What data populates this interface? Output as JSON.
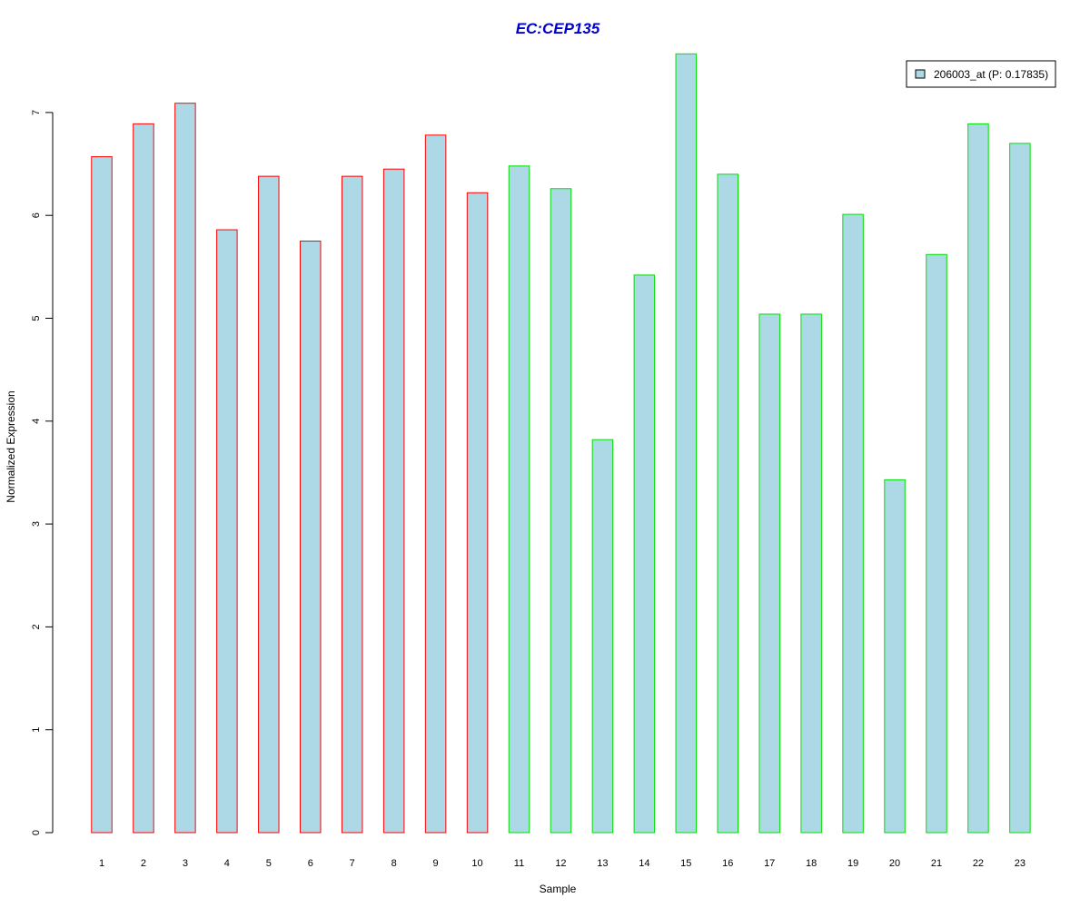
{
  "chart_data": {
    "type": "bar",
    "title": "EC:CEP135",
    "xlabel": "Sample",
    "ylabel": "Normalized Expression",
    "categories": [
      "1",
      "2",
      "3",
      "4",
      "5",
      "6",
      "7",
      "8",
      "9",
      "10",
      "11",
      "12",
      "13",
      "14",
      "15",
      "16",
      "17",
      "18",
      "19",
      "20",
      "21",
      "22",
      "23"
    ],
    "series": [
      {
        "name": "206003_at (P: 0.17835)",
        "values": [
          6.57,
          6.89,
          7.09,
          5.86,
          6.38,
          5.75,
          6.38,
          6.45,
          6.78,
          6.22,
          6.48,
          6.26,
          3.82,
          5.42,
          7.57,
          6.4,
          5.04,
          5.04,
          6.01,
          3.43,
          5.62,
          6.89,
          6.7
        ]
      }
    ],
    "bar_border_groups": [
      {
        "samples": "1-10",
        "color": "#ff0000"
      },
      {
        "samples": "11-23",
        "color": "#00e000"
      }
    ],
    "ylim": [
      0,
      7.57
    ],
    "yticks": [
      0,
      1,
      2,
      3,
      4,
      5,
      6,
      7
    ],
    "grid": false,
    "legend_position": "top-right"
  },
  "colors": {
    "bar_fill": "#add8e6",
    "group1_border": "#ff0000",
    "group2_border": "#00e000",
    "title": "#0000cc"
  }
}
